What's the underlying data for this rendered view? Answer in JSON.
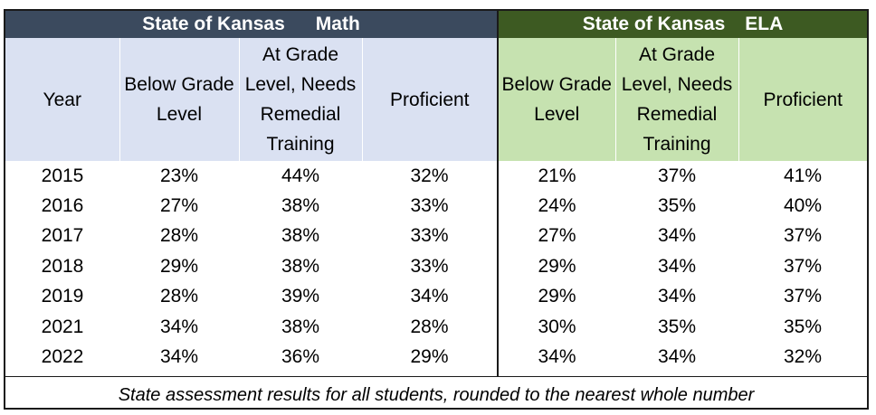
{
  "chart_data": {
    "type": "table",
    "groups": [
      {
        "title": "State of Kansas",
        "subject": "Math"
      },
      {
        "title": "State of Kansas",
        "subject": "ELA"
      }
    ],
    "columns": {
      "year": "Year",
      "math": [
        "Below Grade Level",
        "At Grade Level, Needs Remedial Training",
        "Proficient"
      ],
      "ela": [
        "Below Grade Level",
        "At Grade Level, Needs Remedial Training",
        "Proficient"
      ]
    },
    "rows": [
      {
        "year": "2015",
        "math": [
          "23%",
          "44%",
          "32%"
        ],
        "ela": [
          "21%",
          "37%",
          "41%"
        ]
      },
      {
        "year": "2016",
        "math": [
          "27%",
          "38%",
          "33%"
        ],
        "ela": [
          "24%",
          "35%",
          "40%"
        ]
      },
      {
        "year": "2017",
        "math": [
          "28%",
          "38%",
          "33%"
        ],
        "ela": [
          "27%",
          "34%",
          "37%"
        ]
      },
      {
        "year": "2018",
        "math": [
          "29%",
          "38%",
          "33%"
        ],
        "ela": [
          "29%",
          "34%",
          "37%"
        ]
      },
      {
        "year": "2019",
        "math": [
          "28%",
          "39%",
          "34%"
        ],
        "ela": [
          "29%",
          "34%",
          "37%"
        ]
      },
      {
        "year": "2021",
        "math": [
          "34%",
          "38%",
          "28%"
        ],
        "ela": [
          "30%",
          "35%",
          "35%"
        ]
      },
      {
        "year": "2022",
        "math": [
          "34%",
          "36%",
          "29%"
        ],
        "ela": [
          "34%",
          "34%",
          "32%"
        ]
      }
    ],
    "footnote": "State assessment results for all students, rounded to the nearest whole number",
    "colors": {
      "math_header": "#3b4a5e",
      "ela_header": "#3d5a22",
      "math_subheader": "#dae1f2",
      "ela_subheader": "#c6e2b0"
    }
  }
}
